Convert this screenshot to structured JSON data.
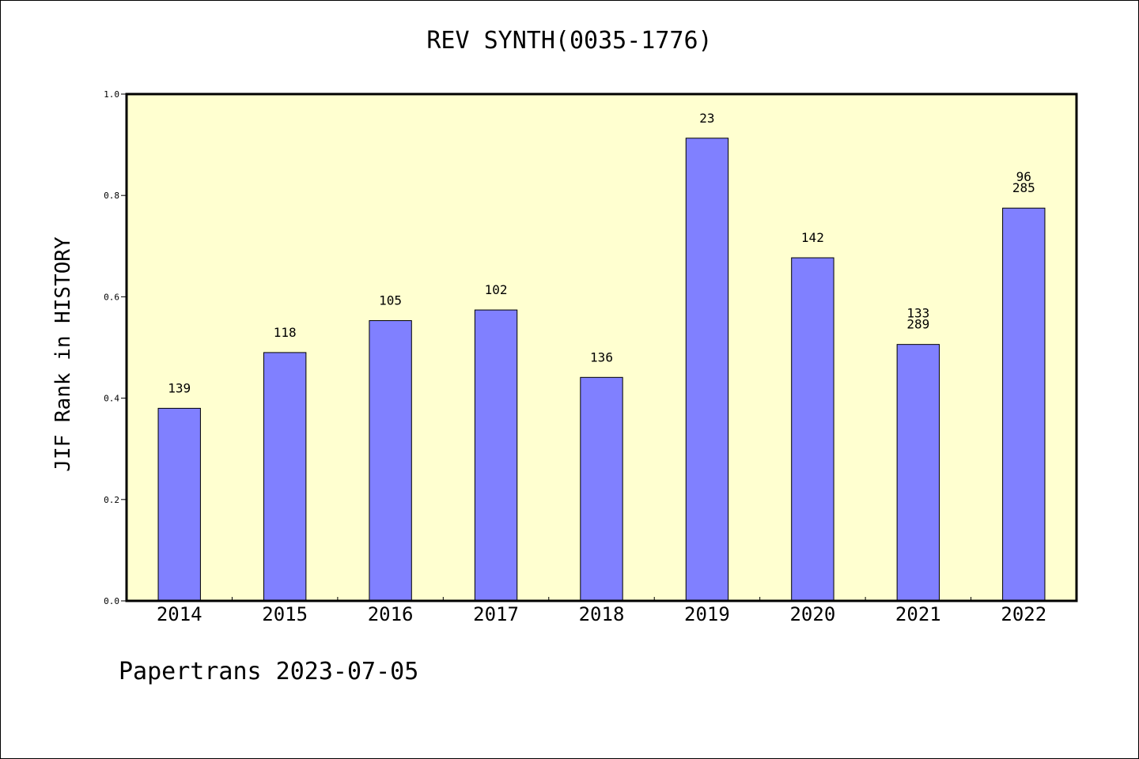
{
  "chart_data": {
    "type": "bar",
    "title": "REV SYNTH(0035-1776)",
    "xlabel": "",
    "ylabel": "JIF Rank in HISTORY",
    "ylim": [
      0,
      1.0
    ],
    "yticks": [
      "0.0",
      "0.2",
      "0.4",
      "0.6",
      "0.8",
      "1.0"
    ],
    "categories": [
      "2014",
      "2015",
      "2016",
      "2017",
      "2018",
      "2019",
      "2020",
      "2021",
      "2022"
    ],
    "values": [
      0.38,
      0.49,
      0.553,
      0.574,
      0.441,
      0.913,
      0.677,
      0.506,
      0.775
    ],
    "data_labels": [
      [
        "139"
      ],
      [
        "118"
      ],
      [
        "105"
      ],
      [
        "102"
      ],
      [
        "136"
      ],
      [
        "23"
      ],
      [
        "142"
      ],
      [
        "133",
        "289"
      ],
      [
        "96",
        "285"
      ]
    ],
    "grid": false,
    "colors": {
      "plot_background": "#ffffd0",
      "bar_fill": "#8080ff",
      "bar_stroke": "#000000",
      "axis": "#000000"
    }
  },
  "footer": "Papertrans 2023-07-05"
}
